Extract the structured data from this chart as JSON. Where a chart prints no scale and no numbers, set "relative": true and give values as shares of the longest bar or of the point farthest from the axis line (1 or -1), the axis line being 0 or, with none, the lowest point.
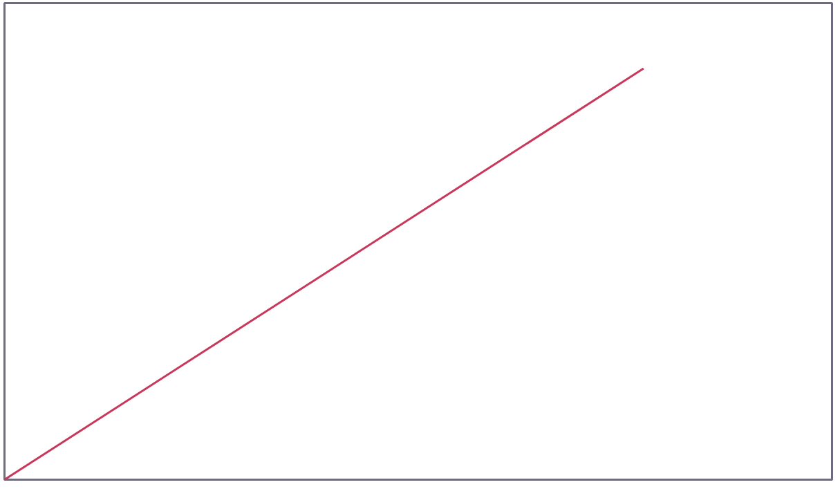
{
  "chart_data": {
    "type": "line",
    "relative": true,
    "categories": [
      null,
      null
    ],
    "series": [
      {
        "color": "#c8385a",
        "values": [
          0,
          1
        ]
      }
    ]
  }
}
